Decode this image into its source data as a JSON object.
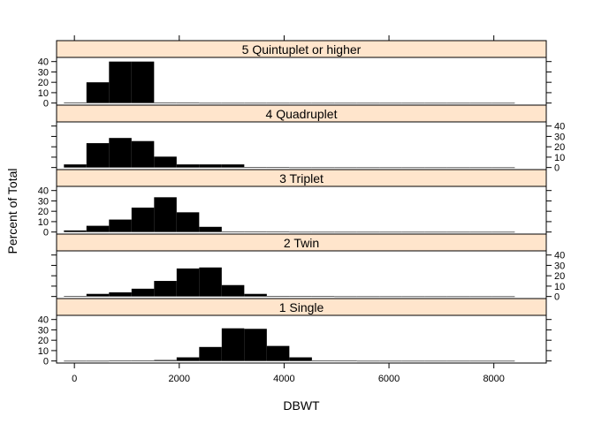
{
  "chart_data": {
    "type": "bar",
    "subtype": "histogram-trellis",
    "xlabel": "DBWT",
    "ylabel": "Percent of Total",
    "xlim": [
      -340,
      9000
    ],
    "ylim": [
      -2,
      44
    ],
    "x_ticks": [
      0,
      2000,
      4000,
      6000,
      8000
    ],
    "y_ticks": [
      0,
      10,
      20,
      30,
      40
    ],
    "bin_edges": [
      -200,
      230,
      660,
      1090,
      1520,
      1950,
      2380,
      2810,
      3240,
      3670,
      4100,
      4530,
      4960,
      5390,
      5820,
      6250,
      6680,
      7110,
      7540,
      7970,
      8400
    ],
    "colors": {
      "strip_bg": "#ffe5cc",
      "bar_fill": "#000000",
      "frame": "#000000"
    },
    "panels": [
      {
        "name": "1 Single",
        "values": [
          0.1,
          0.1,
          0.2,
          0.4,
          0.9,
          3.5,
          13.5,
          31.5,
          31.0,
          14.5,
          3.5,
          0.5,
          0.2,
          0.1,
          0.1,
          0.1,
          0.1,
          0.1,
          0.1,
          0.1
        ]
      },
      {
        "name": "2 Twin",
        "values": [
          0.5,
          2.5,
          4.0,
          7.5,
          15.0,
          27.0,
          28.0,
          11.0,
          2.5,
          0.5,
          0.3,
          0.2,
          0.1,
          0.1,
          0.1,
          0.1,
          0.1,
          0.1,
          0.1,
          0.1
        ]
      },
      {
        "name": "3 Triplet",
        "values": [
          1.5,
          6.0,
          12.0,
          23.5,
          33.5,
          19.0,
          5.0,
          0.5,
          0.3,
          0.2,
          0.1,
          0.1,
          0.1,
          0.1,
          0.1,
          0.1,
          0.1,
          0.1,
          0.1,
          0.1
        ]
      },
      {
        "name": "4 Quadruplet",
        "values": [
          3.0,
          23.5,
          28.5,
          25.5,
          10.5,
          3.0,
          3.0,
          3.0,
          0.3,
          0.2,
          0.1,
          0.1,
          0.1,
          0.1,
          0.1,
          0.1,
          0.1,
          0.1,
          0.1,
          0.1
        ]
      },
      {
        "name": "5 Quintuplet or higher",
        "values": [
          0.5,
          20.0,
          40.0,
          40.0,
          0.3,
          0.2,
          0.1,
          0.1,
          0.1,
          0.1,
          0.1,
          0.1,
          0.1,
          0.1,
          0.1,
          0.1,
          0.1,
          0.1,
          0.1,
          0.1
        ]
      }
    ]
  }
}
